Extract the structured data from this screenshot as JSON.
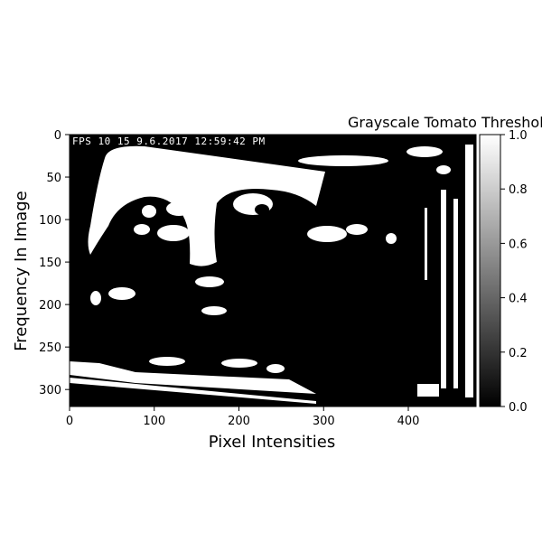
{
  "chart_data": {
    "type": "heatmap",
    "title": "Grayscale Tomato Threshold",
    "xlabel": "Pixel Intensities",
    "ylabel": "Frequency In Image",
    "xlim": [
      0,
      480
    ],
    "ylim": [
      320,
      0
    ],
    "x_ticks": [
      0,
      100,
      200,
      300,
      400
    ],
    "y_ticks": [
      0,
      50,
      100,
      150,
      200,
      250,
      300
    ],
    "colorbar": {
      "range": [
        0.0,
        1.0
      ],
      "ticks": [
        "0.0",
        "0.2",
        "0.4",
        "0.6",
        "0.8",
        "1.0"
      ],
      "colormap": "gray"
    },
    "image_overlay_text": "FPS 10 15 9.6.2017 12:59:42 PM",
    "image_description_colors": {
      "low": "#000000",
      "high": "#ffffff"
    }
  }
}
